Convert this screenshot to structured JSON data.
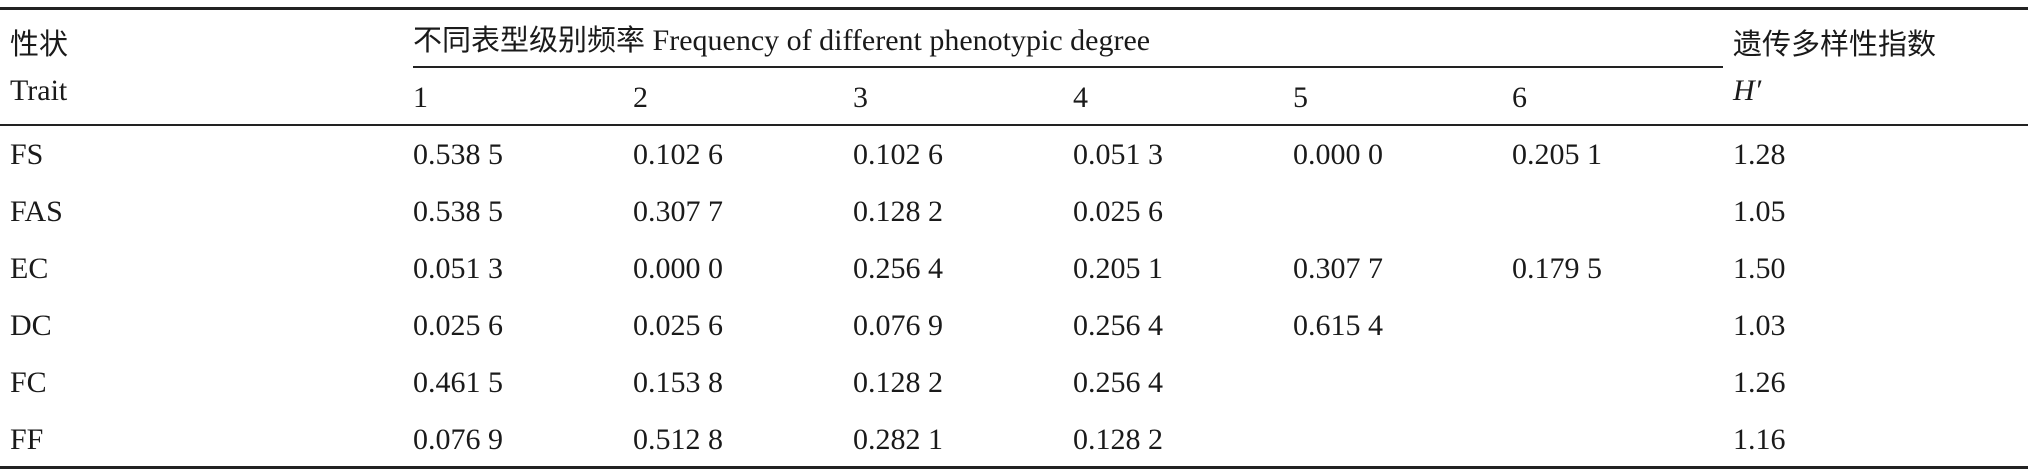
{
  "header": {
    "trait_cn": "性状",
    "trait_en": "Trait",
    "group_cn": "不同表型级别频率",
    "group_en": "Frequency of different phenotypic degree",
    "degrees": [
      "1",
      "2",
      "3",
      "4",
      "5",
      "6"
    ],
    "index_cn": "遗传多样性指数",
    "index_symbol": "H′"
  },
  "rows": [
    {
      "trait": "FS",
      "values": [
        "0.538 5",
        "0.102 6",
        "0.102 6",
        "0.051 3",
        "0.000 0",
        "0.205 1"
      ],
      "h": "1.28"
    },
    {
      "trait": "FAS",
      "values": [
        "0.538 5",
        "0.307 7",
        "0.128 2",
        "0.025 6",
        "",
        ""
      ],
      "h": "1.05"
    },
    {
      "trait": "EC",
      "values": [
        "0.051 3",
        "0.000 0",
        "0.256 4",
        "0.205 1",
        "0.307 7",
        "0.179 5"
      ],
      "h": "1.50"
    },
    {
      "trait": "DC",
      "values": [
        "0.025 6",
        "0.025 6",
        "0.076 9",
        "0.256 4",
        "0.615 4",
        ""
      ],
      "h": "1.03"
    },
    {
      "trait": "FC",
      "values": [
        "0.461 5",
        "0.153 8",
        "0.128 2",
        "0.256 4",
        "",
        ""
      ],
      "h": "1.26"
    },
    {
      "trait": "FF",
      "values": [
        "0.076 9",
        "0.512 8",
        "0.282 1",
        "0.128 2",
        "",
        ""
      ],
      "h": "1.16"
    }
  ]
}
